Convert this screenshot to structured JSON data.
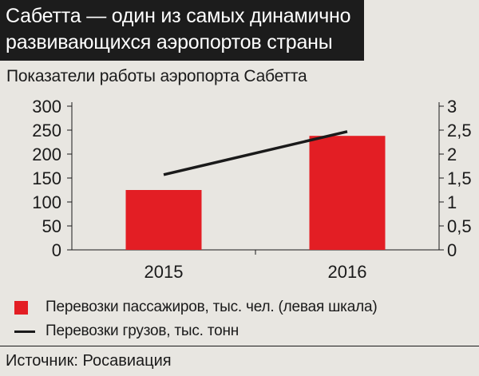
{
  "headline": {
    "line1": "Сабетта — один из самых динамично",
    "line2": "развивающихся аэропортов страны"
  },
  "subtitle": "Показатели работы аэропорта Сабетта",
  "legend": {
    "bars_label": "Перевозки пассажиров, тыс. чел. (левая шкала)",
    "line_label": "Перевозки грузов, тыс. тонн"
  },
  "source": "Источник: Росавиация",
  "colors": {
    "bar": "#e31e24",
    "line": "#1a1a1a",
    "background": "#e8e6e1"
  },
  "chart_data": {
    "type": "bar",
    "categories": [
      "2015",
      "2016"
    ],
    "series": [
      {
        "name": "Перевозки пассажиров, тыс. чел. (левая шкала)",
        "type": "bar",
        "axis": "left",
        "values": [
          125,
          238
        ]
      },
      {
        "name": "Перевозки грузов, тыс. тонн",
        "type": "line",
        "axis": "right",
        "values": [
          1.57,
          2.47
        ]
      }
    ],
    "left_axis": {
      "ylim": [
        0,
        300
      ],
      "ticks": [
        "0",
        "50",
        "100",
        "150",
        "200",
        "250",
        "300"
      ]
    },
    "right_axis": {
      "ylim": [
        0,
        3
      ],
      "ticks": [
        "0",
        "0,5",
        "1",
        "1,5",
        "2",
        "2,5",
        "3"
      ]
    },
    "grid": false,
    "legend_position": "bottom"
  }
}
